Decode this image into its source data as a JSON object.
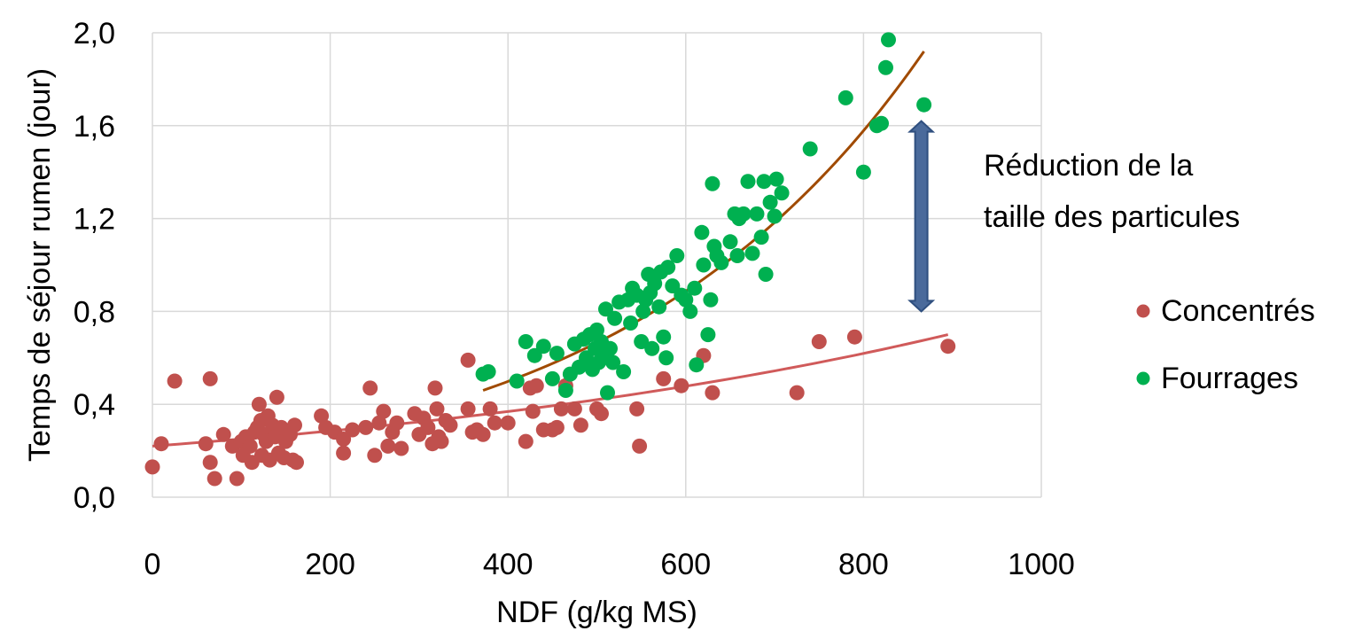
{
  "chart_data": {
    "type": "scatter",
    "xlabel": "NDF (g/kg MS)",
    "ylabel": "Temps de séjour rumen  (jour)",
    "xlim": [
      0,
      1000
    ],
    "ylim": [
      0,
      2.0
    ],
    "x_ticks": [
      "0",
      "200",
      "400",
      "600",
      "800",
      "1000"
    ],
    "y_ticks": [
      "0,0",
      "0,4",
      "0,8",
      "1,2",
      "1,6",
      "2,0"
    ],
    "x_tick_values": [
      0,
      200,
      400,
      600,
      800,
      1000
    ],
    "y_tick_values": [
      0,
      0.4,
      0.8,
      1.2,
      1.6,
      2.0
    ],
    "grid": true,
    "legend_position": "right",
    "annotation": {
      "lines": [
        "Réduction de la",
        "taille des particules"
      ],
      "arrow_x": 865,
      "arrow_y_from": 0.8,
      "arrow_y_to": 1.62,
      "arrow_color": "#4A6A9B"
    },
    "series": [
      {
        "name": "Concentrés",
        "color": "#C0504D",
        "trend": {
          "x_from": 0,
          "x_to": 895,
          "y_from": 0.22,
          "y_to": 0.7
        },
        "points": [
          [
            0,
            0.13
          ],
          [
            10,
            0.23
          ],
          [
            25,
            0.5
          ],
          [
            60,
            0.23
          ],
          [
            65,
            0.51
          ],
          [
            65,
            0.15
          ],
          [
            70,
            0.08
          ],
          [
            80,
            0.27
          ],
          [
            90,
            0.22
          ],
          [
            95,
            0.08
          ],
          [
            100,
            0.24
          ],
          [
            102,
            0.18
          ],
          [
            105,
            0.26
          ],
          [
            110,
            0.22
          ],
          [
            112,
            0.15
          ],
          [
            115,
            0.28
          ],
          [
            118,
            0.3
          ],
          [
            120,
            0.4
          ],
          [
            122,
            0.33
          ],
          [
            123,
            0.18
          ],
          [
            125,
            0.27
          ],
          [
            128,
            0.24
          ],
          [
            130,
            0.35
          ],
          [
            132,
            0.16
          ],
          [
            135,
            0.31
          ],
          [
            138,
            0.26
          ],
          [
            140,
            0.43
          ],
          [
            142,
            0.19
          ],
          [
            145,
            0.3
          ],
          [
            148,
            0.17
          ],
          [
            150,
            0.24
          ],
          [
            155,
            0.27
          ],
          [
            158,
            0.16
          ],
          [
            160,
            0.31
          ],
          [
            162,
            0.15
          ],
          [
            190,
            0.35
          ],
          [
            195,
            0.3
          ],
          [
            205,
            0.28
          ],
          [
            215,
            0.25
          ],
          [
            215,
            0.19
          ],
          [
            225,
            0.29
          ],
          [
            240,
            0.3
          ],
          [
            245,
            0.47
          ],
          [
            250,
            0.18
          ],
          [
            255,
            0.32
          ],
          [
            260,
            0.37
          ],
          [
            265,
            0.22
          ],
          [
            270,
            0.28
          ],
          [
            275,
            0.32
          ],
          [
            280,
            0.21
          ],
          [
            295,
            0.36
          ],
          [
            300,
            0.27
          ],
          [
            305,
            0.34
          ],
          [
            310,
            0.3
          ],
          [
            315,
            0.23
          ],
          [
            318,
            0.47
          ],
          [
            320,
            0.38
          ],
          [
            322,
            0.26
          ],
          [
            325,
            0.24
          ],
          [
            330,
            0.33
          ],
          [
            335,
            0.31
          ],
          [
            355,
            0.59
          ],
          [
            355,
            0.38
          ],
          [
            360,
            0.28
          ],
          [
            365,
            0.29
          ],
          [
            372,
            0.27
          ],
          [
            380,
            0.38
          ],
          [
            385,
            0.32
          ],
          [
            400,
            0.32
          ],
          [
            420,
            0.24
          ],
          [
            425,
            0.47
          ],
          [
            428,
            0.37
          ],
          [
            432,
            0.48
          ],
          [
            440,
            0.29
          ],
          [
            450,
            0.29
          ],
          [
            455,
            0.3
          ],
          [
            460,
            0.38
          ],
          [
            465,
            0.48
          ],
          [
            475,
            0.38
          ],
          [
            482,
            0.31
          ],
          [
            500,
            0.38
          ],
          [
            505,
            0.36
          ],
          [
            545,
            0.38
          ],
          [
            548,
            0.22
          ],
          [
            575,
            0.51
          ],
          [
            595,
            0.48
          ],
          [
            620,
            0.61
          ],
          [
            630,
            0.45
          ],
          [
            725,
            0.45
          ],
          [
            750,
            0.67
          ],
          [
            790,
            0.69
          ],
          [
            895,
            0.65
          ]
        ]
      },
      {
        "name": "Fourrages",
        "color": "#00B050",
        "trend": {
          "x_from": 372,
          "x_to": 868,
          "y_from": 0.46,
          "y_to": 1.92
        },
        "points": [
          [
            372,
            0.53
          ],
          [
            378,
            0.54
          ],
          [
            410,
            0.5
          ],
          [
            420,
            0.67
          ],
          [
            430,
            0.61
          ],
          [
            440,
            0.65
          ],
          [
            450,
            0.51
          ],
          [
            455,
            0.62
          ],
          [
            465,
            0.46
          ],
          [
            470,
            0.53
          ],
          [
            475,
            0.66
          ],
          [
            480,
            0.56
          ],
          [
            485,
            0.68
          ],
          [
            488,
            0.6
          ],
          [
            490,
            0.58
          ],
          [
            492,
            0.7
          ],
          [
            495,
            0.55
          ],
          [
            498,
            0.64
          ],
          [
            500,
            0.72
          ],
          [
            502,
            0.58
          ],
          [
            505,
            0.67
          ],
          [
            508,
            0.61
          ],
          [
            510,
            0.81
          ],
          [
            512,
            0.45
          ],
          [
            515,
            0.64
          ],
          [
            518,
            0.58
          ],
          [
            520,
            0.77
          ],
          [
            525,
            0.84
          ],
          [
            530,
            0.54
          ],
          [
            535,
            0.85
          ],
          [
            538,
            0.75
          ],
          [
            540,
            0.9
          ],
          [
            545,
            0.87
          ],
          [
            550,
            0.67
          ],
          [
            552,
            0.8
          ],
          [
            555,
            0.85
          ],
          [
            558,
            0.96
          ],
          [
            560,
            0.88
          ],
          [
            562,
            0.64
          ],
          [
            565,
            0.92
          ],
          [
            570,
            0.82
          ],
          [
            572,
            0.97
          ],
          [
            575,
            0.69
          ],
          [
            578,
            0.6
          ],
          [
            580,
            0.99
          ],
          [
            585,
            0.91
          ],
          [
            590,
            1.04
          ],
          [
            595,
            0.87
          ],
          [
            600,
            0.85
          ],
          [
            605,
            0.8
          ],
          [
            610,
            0.9
          ],
          [
            612,
            0.57
          ],
          [
            618,
            1.14
          ],
          [
            620,
            1.0
          ],
          [
            625,
            0.7
          ],
          [
            628,
            0.85
          ],
          [
            630,
            1.35
          ],
          [
            632,
            1.08
          ],
          [
            635,
            1.04
          ],
          [
            640,
            1.01
          ],
          [
            650,
            1.1
          ],
          [
            655,
            1.22
          ],
          [
            658,
            1.04
          ],
          [
            660,
            1.2
          ],
          [
            665,
            1.22
          ],
          [
            670,
            1.36
          ],
          [
            675,
            1.05
          ],
          [
            680,
            1.22
          ],
          [
            685,
            1.12
          ],
          [
            688,
            1.36
          ],
          [
            690,
            0.96
          ],
          [
            695,
            1.27
          ],
          [
            700,
            1.21
          ],
          [
            702,
            1.37
          ],
          [
            708,
            1.31
          ],
          [
            740,
            1.5
          ],
          [
            780,
            1.72
          ],
          [
            800,
            1.4
          ],
          [
            815,
            1.6
          ],
          [
            820,
            1.61
          ],
          [
            825,
            1.85
          ],
          [
            828,
            1.97
          ],
          [
            868,
            1.69
          ]
        ]
      }
    ]
  }
}
